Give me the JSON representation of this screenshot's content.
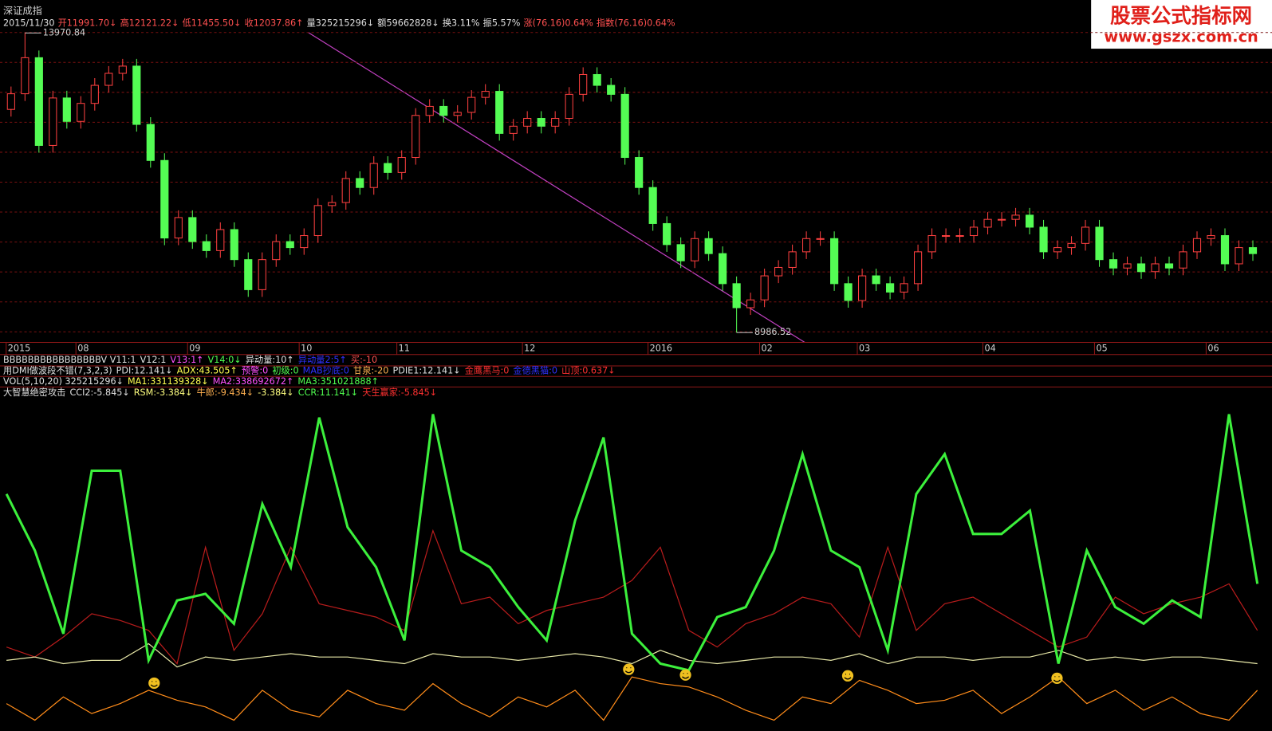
{
  "title": "深证成指",
  "info_bar": [
    {
      "text": "2015/11/30",
      "color": "#e0e0e0"
    },
    {
      "text": "开11991.70↓",
      "color": "#ff5050"
    },
    {
      "text": "高12121.22↓",
      "color": "#ff5050"
    },
    {
      "text": "低11455.50↓",
      "color": "#ff5050"
    },
    {
      "text": "收12037.86↑",
      "color": "#ff5050"
    },
    {
      "text": "量325215296↓",
      "color": "#e0e0e0"
    },
    {
      "text": "额59662828↓",
      "color": "#e0e0e0"
    },
    {
      "text": "换3.11%",
      "color": "#e0e0e0"
    },
    {
      "text": "振5.57%",
      "color": "#e0e0e0"
    },
    {
      "text": "涨(76.16)0.64%",
      "color": "#ff5050"
    },
    {
      "text": "指数(76.16)0.64%",
      "color": "#ff5050"
    }
  ],
  "watermark": {
    "title": "股票公式指标网",
    "url": "www.gszx.com.cn"
  },
  "indicator_rows": [
    [
      {
        "text": "BBBBBBBBBBBBBBBBV V11:1",
        "color": "#e0e0e0"
      },
      {
        "text": "V12:1",
        "color": "#e0e0e0"
      },
      {
        "text": "V13:1↑",
        "color": "#ff50ff"
      },
      {
        "text": "V14:0↓",
        "color": "#50ff50"
      },
      {
        "text": "异动量:10↑",
        "color": "#e0e0e0"
      },
      {
        "text": "异动量2:5↑",
        "color": "#3030ff"
      },
      {
        "text": "买:-10",
        "color": "#ff5050"
      }
    ],
    [
      {
        "text": "用DMI做波段不错(7,3,2,3)",
        "color": "#e0e0e0"
      },
      {
        "text": "PDI:12.141↓",
        "color": "#e0e0e0"
      },
      {
        "text": "ADX:43.505↑",
        "color": "#ffff50"
      },
      {
        "text": "预警:0",
        "color": "#ff50ff"
      },
      {
        "text": "初级:0",
        "color": "#50ff50"
      },
      {
        "text": "MAB抄底:0",
        "color": "#3030ff"
      },
      {
        "text": "甘泉:-20",
        "color": "#ffb050"
      },
      {
        "text": "PDIE1:12.141↓",
        "color": "#e0e0e0"
      },
      {
        "text": "金鹰黑马:0",
        "color": "#ff3030"
      },
      {
        "text": "金德黑猫:0",
        "color": "#3030ff"
      },
      {
        "text": "山顶:0.637↓",
        "color": "#ff3030"
      }
    ],
    [
      {
        "text": "VOL(5,10,20) 325215296↓",
        "color": "#e0e0e0"
      },
      {
        "text": "MA1:331139328↓",
        "color": "#ffff50"
      },
      {
        "text": "MA2:338692672↑",
        "color": "#ff50ff"
      },
      {
        "text": "MA3:351021888↑",
        "color": "#50ff50"
      }
    ],
    [
      {
        "text": "大智慧绝密攻击",
        "color": "#e0e0e0"
      },
      {
        "text": "CCI2:-5.845↓",
        "color": "#e0e0e0"
      },
      {
        "text": "RSM:-3.384↓",
        "color": "#ffff80"
      },
      {
        "text": "牛郎:-9.434↓",
        "color": "#ffb050"
      },
      {
        "text": "-3.384↓",
        "color": "#ffff80"
      },
      {
        "text": "CCR:11.141↓",
        "color": "#50ff50"
      },
      {
        "text": "天生赢家:-5.845↓",
        "color": "#ff3030"
      }
    ]
  ],
  "chart_data": [
    {
      "type": "candlestick",
      "up_color": "#ff4040",
      "down_color": "#54fc54",
      "ylim": [
        8850,
        14250
      ],
      "categories": [
        "2015",
        null,
        null,
        null,
        null,
        "08",
        null,
        null,
        null,
        null,
        null,
        null,
        null,
        "09",
        null,
        null,
        null,
        null,
        null,
        null,
        null,
        "10",
        null,
        null,
        null,
        null,
        null,
        null,
        "11",
        null,
        null,
        null,
        null,
        null,
        null,
        null,
        null,
        "12",
        null,
        null,
        null,
        null,
        null,
        null,
        null,
        null,
        "2016",
        null,
        null,
        null,
        null,
        null,
        null,
        null,
        "02",
        null,
        null,
        null,
        null,
        null,
        null,
        "03",
        null,
        null,
        null,
        null,
        null,
        null,
        null,
        null,
        "04",
        null,
        null,
        null,
        null,
        null,
        null,
        null,
        "05",
        null,
        null,
        null,
        null,
        null,
        null,
        null,
        "06",
        null,
        null,
        null
      ],
      "open": [
        12700,
        12960,
        13560,
        12100,
        12890,
        12500,
        12800,
        13100,
        13300,
        13420,
        12450,
        11850,
        10560,
        10900,
        10500,
        10350,
        10700,
        10200,
        9700,
        10200,
        10500,
        10400,
        10600,
        11100,
        11150,
        11550,
        11400,
        11800,
        11650,
        11900,
        12600,
        12750,
        12600,
        12650,
        12900,
        13000,
        12300,
        12420,
        12550,
        12420,
        12550,
        12950,
        13280,
        13100,
        12950,
        11900,
        11400,
        10800,
        10450,
        10180,
        10550,
        10300,
        9800,
        9400,
        9530,
        9930,
        10070,
        10330,
        10550,
        10550,
        9800,
        9520,
        9930,
        9800,
        9660,
        9800,
        10330,
        10600,
        10600,
        10600,
        10740,
        10870,
        10870,
        10940,
        10740,
        10330,
        10400,
        10470,
        10740,
        10200,
        10060,
        10130,
        10000,
        10130,
        10060,
        10330,
        10550,
        10600,
        10130,
        10400
      ],
      "close": [
        12960,
        13560,
        12100,
        12890,
        12500,
        12800,
        13100,
        13300,
        13420,
        12450,
        11850,
        10560,
        10900,
        10500,
        10350,
        10700,
        10200,
        9700,
        10200,
        10500,
        10400,
        10600,
        11100,
        11150,
        11550,
        11400,
        11800,
        11650,
        11900,
        12600,
        12750,
        12600,
        12650,
        12900,
        13000,
        12300,
        12420,
        12550,
        12420,
        12550,
        12950,
        13280,
        13100,
        12950,
        11900,
        11400,
        10800,
        10450,
        10180,
        10550,
        10300,
        9800,
        9400,
        9530,
        9930,
        10070,
        10330,
        10550,
        10550,
        9800,
        9520,
        9930,
        9800,
        9660,
        9800,
        10330,
        10600,
        10600,
        10600,
        10740,
        10870,
        10870,
        10940,
        10740,
        10330,
        10400,
        10470,
        10740,
        10200,
        10060,
        10130,
        10000,
        10130,
        10060,
        10330,
        10550,
        10600,
        10130,
        10400,
        10300
      ],
      "high": [
        13080,
        13970.84,
        13680,
        13010,
        13010,
        12920,
        13220,
        13420,
        13540,
        13540,
        12570,
        11970,
        11020,
        11020,
        10620,
        10820,
        10820,
        10320,
        10320,
        10620,
        10620,
        10720,
        11220,
        11270,
        11670,
        11670,
        11920,
        11920,
        12020,
        12720,
        12870,
        12870,
        12770,
        13020,
        13120,
        13120,
        12540,
        12670,
        12670,
        12670,
        13070,
        13400,
        13400,
        13220,
        13070,
        12020,
        11520,
        10920,
        10570,
        10670,
        10670,
        10420,
        9920,
        9650,
        10050,
        10190,
        10450,
        10670,
        10670,
        10670,
        9920,
        10050,
        10050,
        9920,
        9920,
        10450,
        10720,
        10720,
        10720,
        10860,
        10990,
        10990,
        11060,
        11060,
        10860,
        10520,
        10590,
        10860,
        10860,
        10320,
        10250,
        10250,
        10250,
        10250,
        10450,
        10670,
        10720,
        10720,
        10520,
        10520
      ],
      "low": [
        12580,
        12840,
        11980,
        11980,
        12380,
        12380,
        12680,
        12980,
        13180,
        12330,
        11730,
        10440,
        10440,
        10380,
        10230,
        10230,
        10080,
        9580,
        9580,
        10080,
        10280,
        10280,
        10480,
        10980,
        11030,
        11280,
        11280,
        11530,
        11530,
        11780,
        12480,
        12480,
        12480,
        12530,
        12780,
        12180,
        12180,
        12300,
        12300,
        12300,
        12430,
        12830,
        12980,
        12830,
        11780,
        11280,
        10680,
        10330,
        10060,
        10060,
        10180,
        9680,
        8986.52,
        9280,
        9410,
        9810,
        9950,
        10210,
        10430,
        9680,
        9400,
        9400,
        9680,
        9540,
        9540,
        9680,
        10210,
        10480,
        10480,
        10480,
        10620,
        10750,
        10750,
        10620,
        10210,
        10210,
        10280,
        10350,
        10080,
        9940,
        9940,
        9880,
        9880,
        9940,
        9940,
        10210,
        10430,
        10010,
        10010,
        10180
      ]
    },
    {
      "type": "line",
      "ylim": [
        0,
        100
      ],
      "series": [
        {
          "color": "#b81c1c",
          "values": [
            25,
            22,
            28,
            35,
            33,
            30,
            20,
            55,
            24,
            35,
            55,
            38,
            36,
            34,
            30,
            60,
            38,
            40,
            32,
            36,
            38,
            40,
            45,
            55,
            30,
            25,
            32,
            35,
            40,
            38,
            28,
            55,
            30,
            38,
            40,
            35,
            30,
            25,
            28,
            40,
            35,
            38,
            40,
            44,
            30
          ]
        },
        {
          "color": "#e8e8a8",
          "values": [
            21,
            22,
            20,
            21,
            21,
            26,
            19,
            22,
            21,
            22,
            23,
            22,
            22,
            21,
            20,
            23,
            22,
            22,
            21,
            22,
            23,
            22,
            20,
            24,
            21,
            20,
            21,
            22,
            22,
            21,
            23,
            20,
            22,
            22,
            21,
            22,
            22,
            24,
            21,
            22,
            21,
            22,
            22,
            21,
            20
          ]
        },
        {
          "color": "#ff8c1a",
          "values": [
            8,
            3,
            10,
            5,
            8,
            12,
            9,
            7,
            3,
            12,
            6,
            4,
            12,
            8,
            6,
            14,
            8,
            4,
            10,
            7,
            12,
            3,
            16,
            14,
            13,
            10,
            6,
            3,
            10,
            8,
            15,
            12,
            8,
            9,
            12,
            5,
            10,
            16,
            8,
            12,
            6,
            10,
            5,
            3,
            12
          ]
        },
        {
          "color": "#3cf03c",
          "values": [
            71,
            54,
            29,
            78,
            78,
            21,
            39,
            41,
            32,
            68,
            49,
            94,
            61,
            49,
            27,
            95,
            54,
            49,
            37,
            27,
            63,
            88,
            29,
            20,
            18,
            34,
            37,
            54,
            83,
            54,
            49,
            24,
            71,
            83,
            59,
            59,
            66,
            20,
            54,
            37,
            32,
            39,
            34,
            95,
            44
          ]
        }
      ]
    }
  ]
}
